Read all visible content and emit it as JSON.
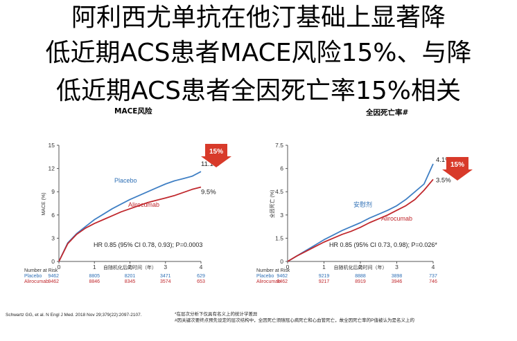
{
  "title": {
    "line1": "阿利西尤单抗在他汀基础上显著降",
    "line2": "低近期ACS患者MACE风险15%、与降",
    "line3": "低近期ACS患者全因死亡率15%相关"
  },
  "chart_data": [
    {
      "type": "line",
      "title": "MACE风险",
      "ylabel": "MACE (%)",
      "xlabel": "自随机化后的时间（年）",
      "ylim": [
        0,
        15
      ],
      "yticks": [
        "0",
        "3",
        "6",
        "9",
        "12",
        "15"
      ],
      "xlim": [
        0,
        4
      ],
      "xticks": [
        "0",
        "1",
        "2",
        "3",
        "4"
      ],
      "badge": "15%",
      "hr_text": "HR 0.85 (95% CI 0.78, 0.93); P=0.0003",
      "series": [
        {
          "name": "Placebo",
          "end_label": "11.1%",
          "color": "#3f7fc4",
          "x": [
            0,
            0.25,
            0.5,
            0.75,
            1.0,
            1.25,
            1.5,
            1.75,
            2.0,
            2.25,
            2.5,
            2.75,
            3.0,
            3.25,
            3.5,
            3.75,
            4.0
          ],
          "y": [
            0,
            2.4,
            3.6,
            4.5,
            5.4,
            6.1,
            6.8,
            7.4,
            8.0,
            8.5,
            9.0,
            9.5,
            10.0,
            10.4,
            10.7,
            11.0,
            11.6
          ]
        },
        {
          "name": "Alirocumab",
          "end_label": "9.5%",
          "color": "#c0282d",
          "x": [
            0,
            0.25,
            0.5,
            0.75,
            1.0,
            1.25,
            1.5,
            1.75,
            2.0,
            2.25,
            2.5,
            2.75,
            3.0,
            3.25,
            3.5,
            3.75,
            4.0
          ],
          "y": [
            0,
            2.3,
            3.5,
            4.3,
            4.9,
            5.4,
            5.9,
            6.4,
            6.8,
            7.2,
            7.6,
            7.9,
            8.2,
            8.5,
            8.9,
            9.3,
            9.6
          ]
        }
      ],
      "risk_table": {
        "header": "Number at Risk",
        "rows": [
          {
            "label": "Placebo",
            "values": [
              "9462",
              "8805",
              "8201",
              "3471",
              "629"
            ]
          },
          {
            "label": "Alirocumab",
            "values": [
              "9462",
              "8846",
              "8345",
              "3574",
              "653"
            ]
          }
        ]
      }
    },
    {
      "type": "line",
      "title": "全因死亡率#",
      "ylabel": "全因死亡 (%)",
      "xlabel": "自随机化后的时间（年）",
      "ylim": [
        0,
        7.5
      ],
      "yticks": [
        "0",
        "1.5",
        "3",
        "4.5",
        "6",
        "7.5"
      ],
      "xlim": [
        0,
        4
      ],
      "xticks": [
        "0",
        "1",
        "2",
        "3",
        "4"
      ],
      "badge": "15%",
      "hr_text": "HR 0.85 (95% CI 0.73, 0.98); P=0.026*",
      "series": [
        {
          "name": "安慰剂",
          "end_label": "4.1%",
          "color": "#3f7fc4",
          "x": [
            0,
            0.25,
            0.5,
            0.75,
            1.0,
            1.25,
            1.5,
            1.75,
            2.0,
            2.25,
            2.5,
            2.75,
            3.0,
            3.25,
            3.5,
            3.75,
            4.0
          ],
          "y": [
            0,
            0.35,
            0.7,
            1.05,
            1.4,
            1.7,
            2.0,
            2.25,
            2.5,
            2.8,
            3.05,
            3.3,
            3.6,
            4.0,
            4.5,
            5.0,
            6.3
          ]
        },
        {
          "name": "Alirocumab",
          "end_label": "3.5%",
          "color": "#c0282d",
          "x": [
            0,
            0.25,
            0.5,
            0.75,
            1.0,
            1.25,
            1.5,
            1.75,
            2.0,
            2.25,
            2.5,
            2.75,
            3.0,
            3.25,
            3.5,
            3.75,
            4.0
          ],
          "y": [
            0,
            0.35,
            0.65,
            0.95,
            1.25,
            1.5,
            1.75,
            1.95,
            2.2,
            2.5,
            2.75,
            3.0,
            3.3,
            3.6,
            4.0,
            4.6,
            5.3
          ]
        }
      ],
      "risk_table": {
        "header": "Number at Risk",
        "rows": [
          {
            "label": "Placebo",
            "values": [
              "9462",
              "9219",
              "8888",
              "3898",
              "737"
            ]
          },
          {
            "label": "Alirocumab",
            "values": [
              "9462",
              "9217",
              "8919",
              "3946",
              "746"
            ]
          }
        ]
      }
    }
  ],
  "footnotes": {
    "citation": "Schwartz GG, et al. N Engl J Med. 2018 Nov 29;379(22):2097-2107.",
    "note1": "*在层次分析下仅具有名义上的统计学差异",
    "note2": "#因关键次要终点预先设定的层次结构中，全因死亡须随冠心病死亡和心血管死亡，故全因死亡率的P值被认为是名义上的"
  }
}
